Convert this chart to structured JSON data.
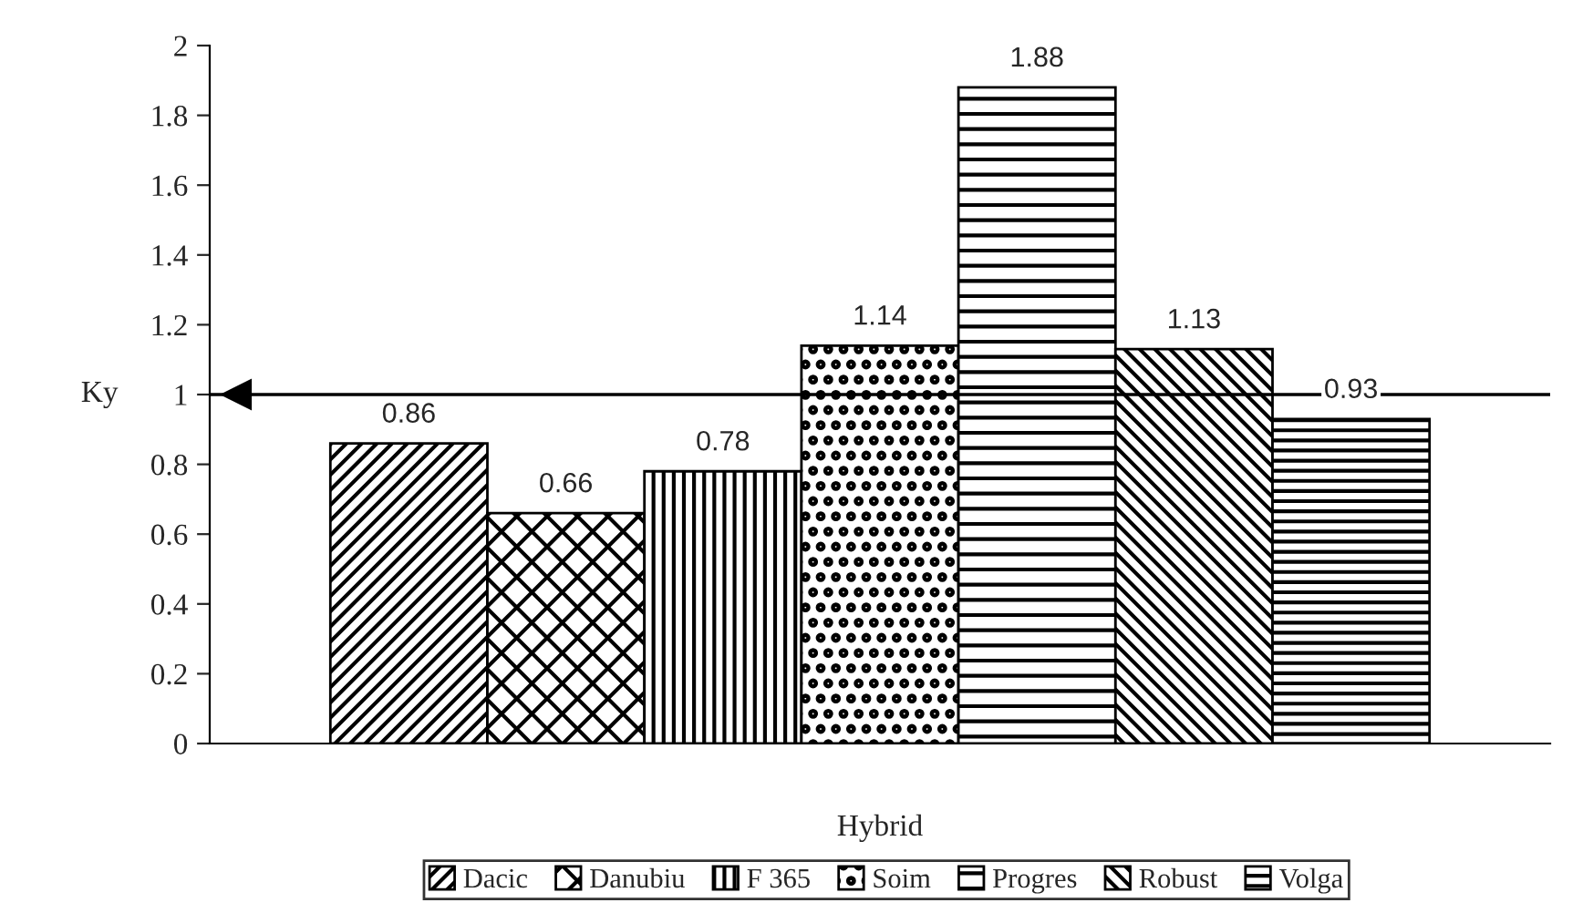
{
  "chart_data": {
    "type": "bar",
    "categories": [
      null
    ],
    "xlabel": "Hybrid",
    "ylabel": "Ky",
    "series": [
      {
        "name": "Dacic",
        "color": "#000000",
        "values": [
          0.86
        ]
      },
      {
        "name": "Danubiu",
        "color": "#000000",
        "values": [
          0.66
        ]
      },
      {
        "name": "F 365",
        "color": "#000000",
        "values": [
          0.78
        ]
      },
      {
        "name": "Soim",
        "color": "#000000",
        "values": [
          1.14
        ]
      },
      {
        "name": "Progres",
        "color": "#000000",
        "values": [
          1.88
        ]
      },
      {
        "name": "Robust",
        "color": "#000000",
        "values": [
          1.13
        ]
      },
      {
        "name": "Volga",
        "color": "#000000",
        "values": [
          0.93
        ]
      }
    ],
    "ylim": [
      0,
      2
    ],
    "yticks": [
      0,
      0.2,
      0.4,
      0.6,
      0.8,
      1,
      1.2,
      1.4,
      1.6,
      1.8,
      2
    ],
    "ref_lines": [
      {
        "axis": "y",
        "value": 1,
        "color": "#000000",
        "line_style": "solid"
      }
    ],
    "data_labels": true,
    "grid": false,
    "legend": "bottom",
    "tick_labels": "y"
  }
}
